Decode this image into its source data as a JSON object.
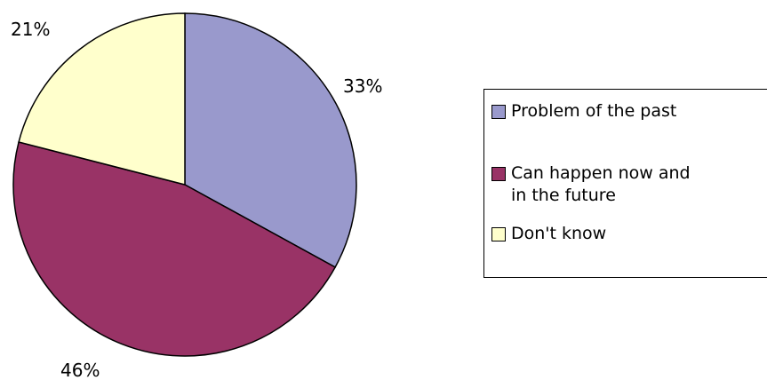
{
  "chart_data": {
    "type": "pie",
    "title": "",
    "slices": [
      {
        "label": "Problem of the past",
        "value": 33,
        "value_label": "33%",
        "color": "#9999cc"
      },
      {
        "label": "Can happen now and\nin the future",
        "value": 46,
        "value_label": "46%",
        "color": "#993366"
      },
      {
        "label": "Don't know",
        "value": 21,
        "value_label": "21%",
        "color": "#ffffcc"
      }
    ],
    "legend_position": "right"
  }
}
